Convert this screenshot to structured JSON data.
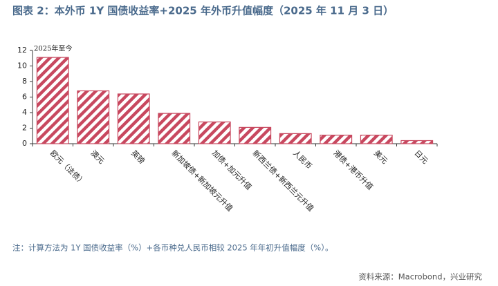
{
  "chart_data": {
    "type": "bar",
    "title": "图表 2：本外币 1Y 国债收益率+2025 年外币升值幅度（2025 年 11 月 3 日）",
    "annotation": "2025年至今",
    "categories": [
      "欧元（法债）",
      "澳元",
      "英镑",
      "新加坡债+新加坡元升值",
      "加债+加元升值",
      "新西兰债+新西兰元升值",
      "人民币",
      "港债+港币升值",
      "美元",
      "日元"
    ],
    "values": [
      11.1,
      6.8,
      6.4,
      3.9,
      2.8,
      2.1,
      1.3,
      1.1,
      1.1,
      0.4
    ],
    "color": "#c8485f",
    "ylim": [
      0,
      12
    ],
    "yticks": [
      0,
      2,
      4,
      6,
      8,
      10,
      12
    ],
    "note": "注：计算方法为 1Y 国债收益率（%）+各币种兑人民币相较 2025 年年初升值幅度（%）。",
    "source": "资料来源：Macrobond，兴业研究"
  }
}
